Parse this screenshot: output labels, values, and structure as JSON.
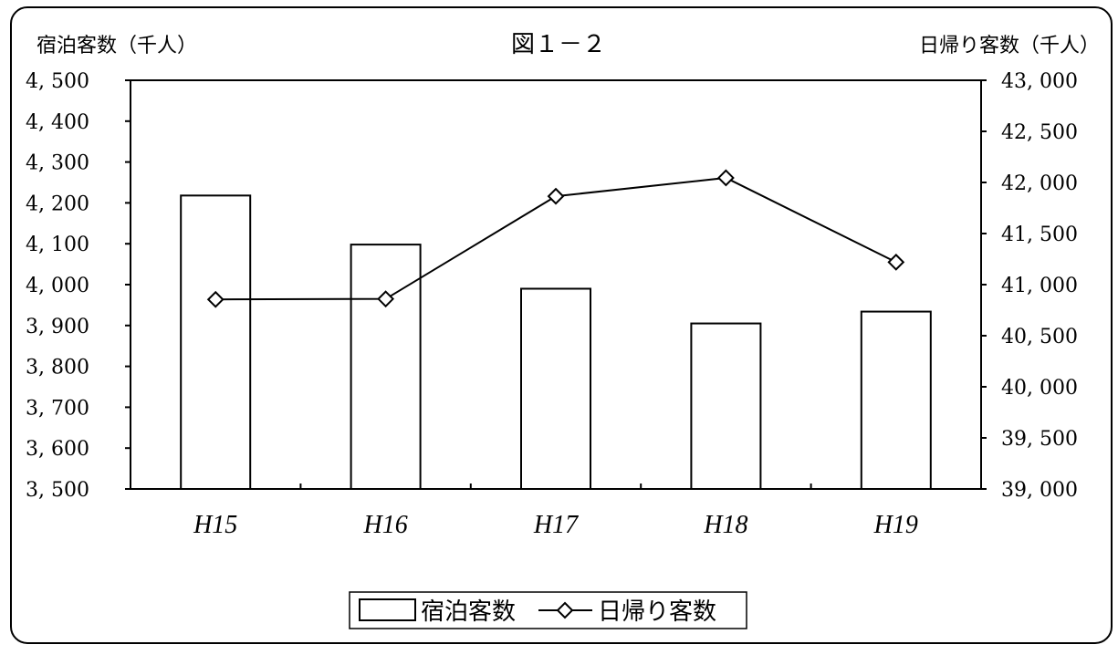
{
  "chart_data": {
    "type": "bar",
    "title": "図１－２",
    "y_left_label": "宿泊客数（千人）",
    "y_right_label": "日帰り客数（千人）",
    "categories": [
      "H15",
      "H16",
      "H17",
      "H18",
      "H19"
    ],
    "series": [
      {
        "name": "宿泊客数",
        "type": "bar",
        "axis": "left",
        "values": [
          4218,
          4098,
          3990,
          3905,
          3934
        ]
      },
      {
        "name": "日帰り客数",
        "type": "line",
        "axis": "right",
        "marker": "diamond",
        "values": [
          40855,
          40860,
          41865,
          42045,
          41220
        ]
      }
    ],
    "y_left": {
      "lim": [
        3500,
        4500
      ],
      "ticks": [
        3500,
        3600,
        3700,
        3800,
        3900,
        4000,
        4100,
        4200,
        4300,
        4400,
        4500
      ],
      "tick_labels": [
        "3, 500",
        "3, 600",
        "3, 700",
        "3, 800",
        "3, 900",
        "4, 000",
        "4, 100",
        "4, 200",
        "4, 300",
        "4, 400",
        "4, 500"
      ]
    },
    "y_right": {
      "lim": [
        39000,
        43000
      ],
      "ticks": [
        39000,
        39500,
        40000,
        40500,
        41000,
        41500,
        42000,
        42500,
        43000
      ],
      "tick_labels": [
        "39, 000",
        "39, 500",
        "40, 000",
        "40, 500",
        "41, 000",
        "41, 500",
        "42, 000",
        "42, 500",
        "43, 000"
      ]
    },
    "grid": false,
    "legend": {
      "position": "bottom",
      "items": [
        "宿泊客数",
        "日帰り客数"
      ]
    },
    "colors": {
      "bar_fill": "#ffffff",
      "stroke": "#000000"
    }
  }
}
